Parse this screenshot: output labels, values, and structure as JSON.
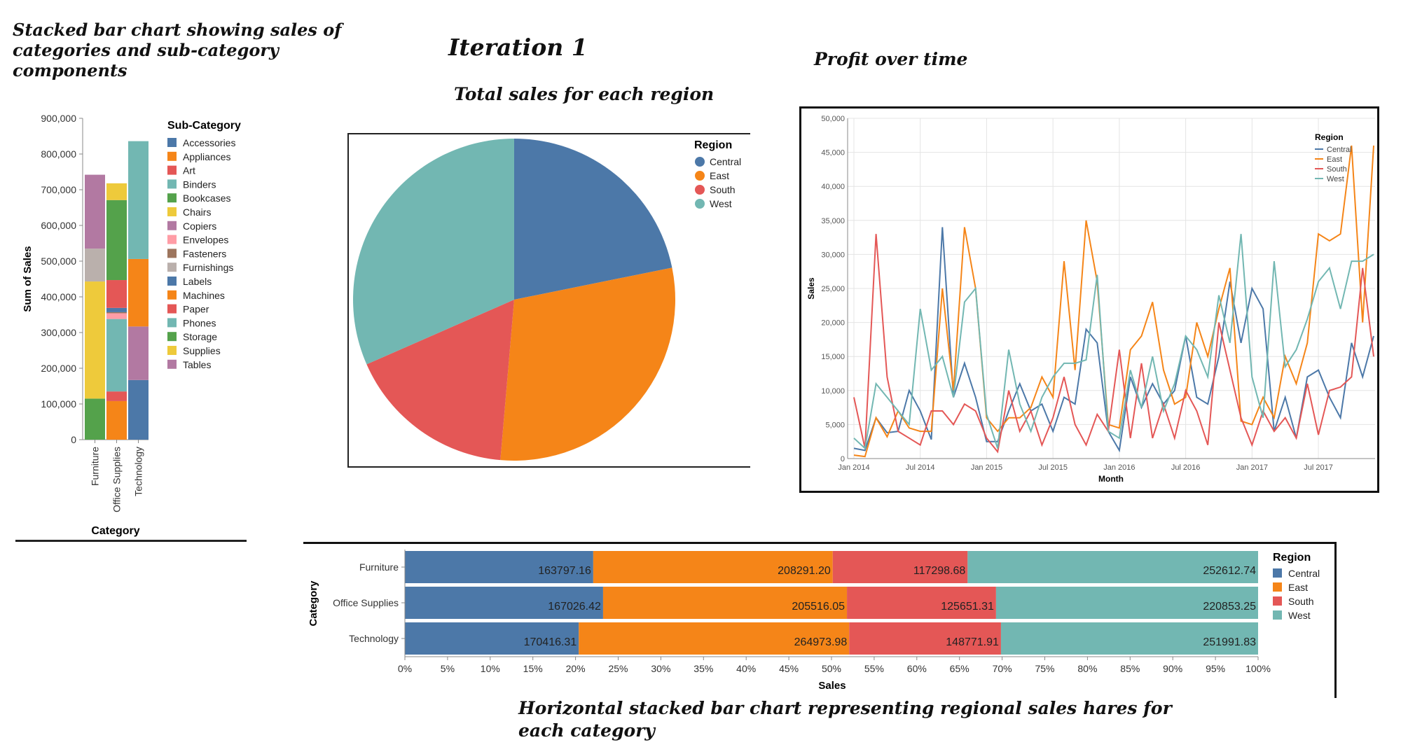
{
  "captions": {
    "stacked": "Stacked bar chart showing sales of categories and sub-category components",
    "iteration": "Iteration 1",
    "pie": "Total sales for each region",
    "line": "Profit over time",
    "hbar": "Horizontal stacked bar chart representing regional sales hares for each category"
  },
  "chart_data": [
    {
      "type": "bar",
      "stacked": true,
      "xlabel": "Category",
      "ylabel": "Sum of Sales",
      "ylim": [
        0,
        900000
      ],
      "yticks": [
        "0",
        "100,000",
        "200,000",
        "300,000",
        "400,000",
        "500,000",
        "600,000",
        "700,000",
        "800,000",
        "900,000"
      ],
      "legend_title": "Sub-Category",
      "legend_position": "right",
      "categories": [
        "Furniture",
        "Office Supplies",
        "Technology"
      ],
      "series": [
        {
          "name": "Accessories",
          "color": "#4c78a8",
          "values": [
            0,
            0,
            167000
          ]
        },
        {
          "name": "Appliances",
          "color": "#f58518",
          "values": [
            0,
            108000,
            0
          ]
        },
        {
          "name": "Art",
          "color": "#e45756",
          "values": [
            0,
            27000,
            0
          ]
        },
        {
          "name": "Binders",
          "color": "#72b7b2",
          "values": [
            0,
            203000,
            0
          ]
        },
        {
          "name": "Bookcases",
          "color": "#54a24b",
          "values": [
            115000,
            0,
            0
          ]
        },
        {
          "name": "Chairs",
          "color": "#eeca3b",
          "values": [
            328000,
            0,
            0
          ]
        },
        {
          "name": "Copiers",
          "color": "#b279a2",
          "values": [
            0,
            0,
            150000
          ]
        },
        {
          "name": "Envelopes",
          "color": "#ff9da6",
          "values": [
            0,
            16000,
            0
          ]
        },
        {
          "name": "Fasteners",
          "color": "#9d755d",
          "values": [
            0,
            3000,
            0
          ]
        },
        {
          "name": "Furnishings",
          "color": "#bab0ac",
          "values": [
            92000,
            0,
            0
          ]
        },
        {
          "name": "Labels",
          "color": "#4c78a8",
          "values": [
            0,
            12000,
            0
          ]
        },
        {
          "name": "Machines",
          "color": "#f58518",
          "values": [
            0,
            0,
            189000
          ]
        },
        {
          "name": "Paper",
          "color": "#e45756",
          "values": [
            0,
            78000,
            0
          ]
        },
        {
          "name": "Phones",
          "color": "#72b7b2",
          "values": [
            0,
            0,
            330000
          ]
        },
        {
          "name": "Storage",
          "color": "#54a24b",
          "values": [
            0,
            224000,
            0
          ]
        },
        {
          "name": "Supplies",
          "color": "#eeca3b",
          "values": [
            0,
            47000,
            0
          ]
        },
        {
          "name": "Tables",
          "color": "#b279a2",
          "values": [
            207000,
            0,
            0
          ]
        }
      ]
    },
    {
      "type": "pie",
      "legend_title": "Region",
      "legend_position": "top-right",
      "labels": [
        "Central",
        "East",
        "South",
        "West"
      ],
      "values": [
        501240,
        678781,
        391722,
        725458
      ],
      "colors": [
        "#4c78a8",
        "#f58518",
        "#e45756",
        "#72b7b2"
      ]
    },
    {
      "type": "line",
      "xlabel": "Month",
      "ylabel": "Sales",
      "ylim": [
        0,
        50000
      ],
      "yticks": [
        "0",
        "5,000",
        "10,000",
        "15,000",
        "20,000",
        "25,000",
        "30,000",
        "35,000",
        "40,000",
        "45,000",
        "50,000"
      ],
      "xticks": [
        "Jan 2014",
        "Jul 2014",
        "Jan 2015",
        "Jul 2015",
        "Jan 2016",
        "Jul 2016",
        "Jan 2017",
        "Jul 2017"
      ],
      "x_start": "2014-01",
      "x_end": "2017-12",
      "grid": true,
      "legend_title": "Region",
      "legend_position": "top-right",
      "series": [
        {
          "name": "Central",
          "color": "#4c78a8",
          "values": [
            1500,
            1200,
            6000,
            3800,
            4000,
            10000,
            7000,
            2800,
            34000,
            9000,
            14000,
            9000,
            2500,
            2500,
            7000,
            11000,
            7000,
            8000,
            4000,
            9000,
            8000,
            19000,
            17000,
            4000,
            1200,
            12000,
            7500,
            11000,
            8000,
            10000,
            18000,
            9000,
            8000,
            15000,
            26000,
            17000,
            25000,
            22000,
            4000,
            9000,
            3000,
            12000,
            13000,
            9000,
            6000,
            17000,
            12000,
            18000
          ]
        },
        {
          "name": "East",
          "color": "#f58518",
          "values": [
            500,
            300,
            6000,
            3200,
            7000,
            4500,
            4000,
            4000,
            25000,
            10000,
            34000,
            25000,
            6000,
            4000,
            6000,
            6000,
            7500,
            12000,
            9000,
            29000,
            13000,
            35000,
            26000,
            5000,
            4500,
            16000,
            18000,
            23000,
            13000,
            8000,
            9000,
            20000,
            15000,
            22000,
            28000,
            5500,
            5000,
            9000,
            6000,
            15000,
            11000,
            17000,
            33000,
            32000,
            33000,
            46000,
            20000,
            46000
          ]
        },
        {
          "name": "South",
          "color": "#e45756",
          "values": [
            9000,
            1500,
            33000,
            12000,
            4000,
            3000,
            2000,
            7000,
            7000,
            5000,
            8000,
            7000,
            3000,
            1000,
            10000,
            4000,
            7000,
            2000,
            6000,
            12000,
            5000,
            2000,
            6500,
            4000,
            16000,
            3000,
            14000,
            3000,
            8000,
            3000,
            10000,
            7000,
            2000,
            20000,
            13000,
            6000,
            2000,
            7000,
            4000,
            6000,
            3000,
            11000,
            3500,
            10000,
            10500,
            12000,
            28000,
            15000
          ]
        },
        {
          "name": "West",
          "color": "#72b7b2",
          "values": [
            3000,
            1500,
            11000,
            9000,
            7000,
            5000,
            22000,
            13000,
            15000,
            9000,
            23000,
            25000,
            6500,
            1500,
            16000,
            8000,
            4000,
            9000,
            12000,
            14000,
            14000,
            14500,
            27000,
            4000,
            3000,
            13000,
            7500,
            15000,
            7000,
            11000,
            18000,
            16000,
            12000,
            24000,
            17000,
            33000,
            12000,
            6000,
            29000,
            13500,
            16000,
            20500,
            26000,
            28000,
            22000,
            29000,
            29000,
            30000
          ]
        }
      ]
    },
    {
      "type": "bar",
      "orientation": "horizontal",
      "stacked": true,
      "normalized": true,
      "xlabel": "Sales",
      "ylabel": "Category",
      "xticks": [
        "0%",
        "5%",
        "10%",
        "15%",
        "20%",
        "25%",
        "30%",
        "35%",
        "40%",
        "45%",
        "50%",
        "55%",
        "60%",
        "65%",
        "70%",
        "75%",
        "80%",
        "85%",
        "90%",
        "95%",
        "100%"
      ],
      "legend_title": "Region",
      "legend_position": "right",
      "categories": [
        "Furniture",
        "Office Supplies",
        "Technology"
      ],
      "series": [
        {
          "name": "Central",
          "color": "#4c78a8",
          "values": [
            163797.16,
            167026.42,
            170416.31
          ],
          "labels": [
            "163797.16",
            "167026.42",
            "170416.31"
          ]
        },
        {
          "name": "East",
          "color": "#f58518",
          "values": [
            208291.2,
            205516.05,
            264973.98
          ],
          "labels": [
            "208291.20",
            "205516.05",
            "264973.98"
          ]
        },
        {
          "name": "South",
          "color": "#e45756",
          "values": [
            117298.68,
            125651.31,
            148771.91
          ],
          "labels": [
            "117298.68",
            "125651.31",
            "148771.91"
          ]
        },
        {
          "name": "West",
          "color": "#72b7b2",
          "values": [
            252612.74,
            220853.25,
            251991.83
          ],
          "labels": [
            "252612.74",
            "220853.25",
            "251991.83"
          ]
        }
      ]
    }
  ]
}
